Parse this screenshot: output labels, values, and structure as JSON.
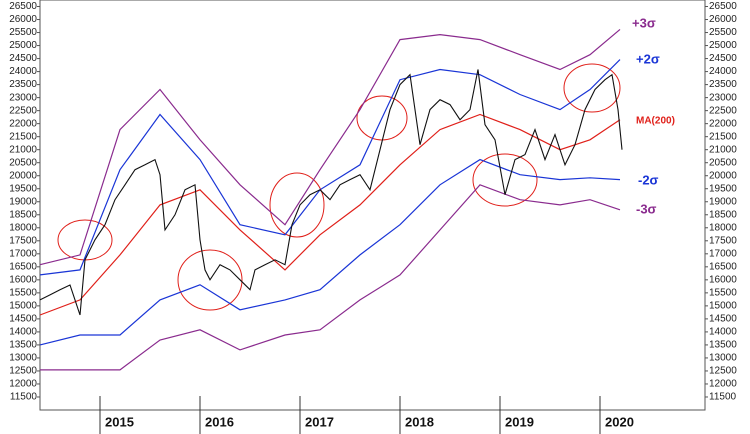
{
  "chart_data": {
    "type": "line",
    "xlim": [
      2014.4,
      2021.05
    ],
    "xticks": [
      {
        "value": 2015,
        "label": "2015"
      },
      {
        "value": 2016,
        "label": "2016"
      },
      {
        "value": 2017,
        "label": "2017"
      },
      {
        "value": 2018,
        "label": "2018"
      },
      {
        "value": 2019,
        "label": "2019"
      },
      {
        "value": 2020,
        "label": "2020"
      }
    ],
    "ylim": [
      11000,
      26750
    ],
    "yticks": [
      11500,
      12000,
      12500,
      13000,
      13500,
      14000,
      14500,
      15000,
      15500,
      16000,
      16500,
      17000,
      17500,
      18000,
      18500,
      19000,
      19500,
      20000,
      20500,
      21000,
      21500,
      22000,
      22500,
      23000,
      23500,
      24000,
      24500,
      25000,
      25500,
      26000,
      26500
    ],
    "series": [
      {
        "name": "+3σ",
        "color": "#8a2b8e",
        "x": [
          2014.4,
          2014.8,
          2015.2,
          2015.6,
          2016.0,
          2016.4,
          2016.85,
          2017.2,
          2017.6,
          2018.0,
          2018.4,
          2018.8,
          2019.2,
          2019.6,
          2019.9,
          2020.2
        ],
        "values": [
          16580,
          16960,
          21770,
          23310,
          21380,
          19650,
          18120,
          20230,
          22540,
          25230,
          25420,
          25230,
          24650,
          24080,
          24650,
          25620
        ]
      },
      {
        "name": "+2σ",
        "color": "#1a35d6",
        "x": [
          2014.4,
          2014.8,
          2015.2,
          2015.6,
          2016.0,
          2016.4,
          2016.85,
          2017.2,
          2017.6,
          2018.0,
          2018.4,
          2018.8,
          2019.2,
          2019.6,
          2019.9,
          2020.2
        ],
        "values": [
          16190,
          16380,
          20230,
          22350,
          20620,
          18120,
          17730,
          19460,
          20420,
          23690,
          24080,
          23880,
          23120,
          22540,
          23310,
          24460
        ]
      },
      {
        "name": "MA(200)",
        "color": "#e0201a",
        "x": [
          2014.4,
          2014.8,
          2015.2,
          2015.6,
          2016.0,
          2016.4,
          2016.85,
          2017.2,
          2017.6,
          2018.0,
          2018.4,
          2018.8,
          2019.2,
          2019.6,
          2019.9,
          2020.2
        ],
        "values": [
          14650,
          15230,
          16960,
          18880,
          19460,
          17920,
          16380,
          17730,
          18880,
          20420,
          21770,
          22350,
          21770,
          21000,
          21380,
          22150
        ]
      },
      {
        "name": "-2σ",
        "color": "#1a35d6",
        "x": [
          2014.4,
          2014.8,
          2015.2,
          2015.6,
          2016.0,
          2016.4,
          2016.85,
          2017.2,
          2017.6,
          2018.0,
          2018.4,
          2018.8,
          2019.2,
          2019.6,
          2019.9,
          2020.2
        ],
        "values": [
          13500,
          13880,
          13880,
          15230,
          15810,
          14850,
          15230,
          15620,
          16960,
          18120,
          19650,
          20620,
          20040,
          19850,
          19920,
          19850
        ]
      },
      {
        "name": "-3σ",
        "color": "#8a2b8e",
        "x": [
          2014.4,
          2014.8,
          2015.2,
          2015.6,
          2016.0,
          2016.4,
          2016.85,
          2017.2,
          2017.6,
          2018.0,
          2018.4,
          2018.8,
          2019.2,
          2019.6,
          2019.9,
          2020.2
        ],
        "values": [
          12540,
          12540,
          12540,
          13690,
          14080,
          13310,
          13880,
          14080,
          15230,
          16190,
          17920,
          19650,
          19080,
          18880,
          19080,
          18690
        ]
      },
      {
        "color": "#111111",
        "x": [
          2014.4,
          2014.5,
          2014.6,
          2014.7,
          2014.75,
          2014.8,
          2014.85,
          2014.95,
          2015.05,
          2015.15,
          2015.25,
          2015.35,
          2015.45,
          2015.55,
          2015.6,
          2015.65,
          2015.75,
          2015.85,
          2015.95,
          2016.0,
          2016.05,
          2016.1,
          2016.2,
          2016.3,
          2016.4,
          2016.5,
          2016.55,
          2016.65,
          2016.75,
          2016.85,
          2016.92,
          2017.0,
          2017.1,
          2017.2,
          2017.3,
          2017.4,
          2017.5,
          2017.6,
          2017.7,
          2017.8,
          2017.9,
          2018.0,
          2018.1,
          2018.2,
          2018.3,
          2018.4,
          2018.5,
          2018.6,
          2018.7,
          2018.78,
          2018.85,
          2018.95,
          2019.05,
          2019.15,
          2019.25,
          2019.35,
          2019.45,
          2019.55,
          2019.65,
          2019.75,
          2019.85,
          2019.95,
          2020.05,
          2020.12,
          2020.18,
          2020.22
        ],
        "values": [
          15230,
          15420,
          15620,
          15800,
          15230,
          14650,
          16770,
          17540,
          18120,
          19080,
          19650,
          20230,
          20420,
          20620,
          20040,
          17920,
          18500,
          19460,
          19650,
          17540,
          16380,
          16000,
          16580,
          16380,
          16000,
          15620,
          16380,
          16580,
          16770,
          16580,
          18120,
          18880,
          19270,
          19460,
          19080,
          19650,
          19850,
          20040,
          19460,
          21000,
          22540,
          23500,
          23880,
          21190,
          22540,
          22920,
          22730,
          22150,
          22540,
          24080,
          21960,
          21380,
          19270,
          20620,
          20810,
          21770,
          20620,
          21580,
          20420,
          21190,
          22540,
          23310,
          23690,
          23880,
          22540,
          21000
        ]
      }
    ]
  }
}
